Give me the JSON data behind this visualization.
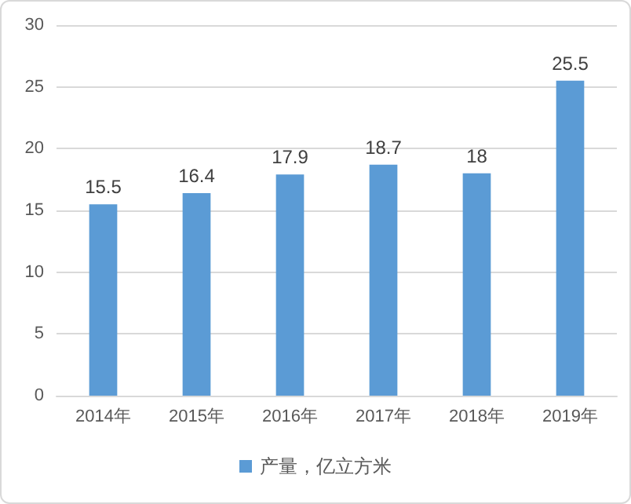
{
  "chart_data": {
    "type": "bar",
    "categories": [
      "2014年",
      "2015年",
      "2016年",
      "2017年",
      "2018年",
      "2019年"
    ],
    "series": [
      {
        "name": "产量，亿立方米",
        "color": "#5b9bd5",
        "values": [
          15.5,
          16.4,
          17.9,
          18.7,
          18,
          25.5
        ]
      }
    ],
    "ylim": [
      0,
      30
    ],
    "yticks": [
      0,
      5,
      10,
      15,
      20,
      25,
      30
    ],
    "grid": "y",
    "legend": "bottom",
    "data_labels": true
  }
}
